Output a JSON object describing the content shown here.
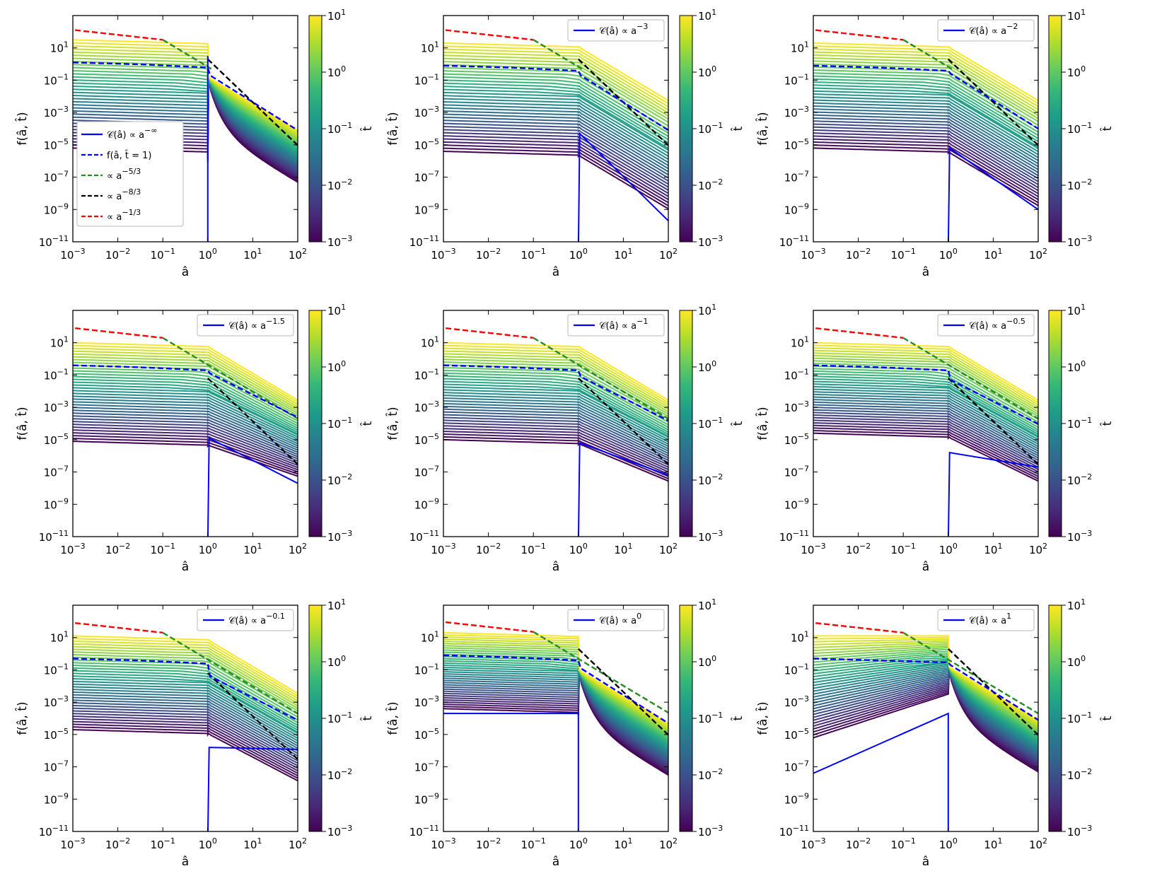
{
  "figure": {
    "x_axis_label": "â",
    "y_axis_label": "f(â, t̂)",
    "colorbar_label": "t̂",
    "x_tick_labels": [
      "10−3",
      "10−2",
      "10−1",
      "100",
      "101",
      "102"
    ],
    "y_tick_labels": [
      "10−11",
      "10−9",
      "10−7",
      "10−5",
      "10−3",
      "10−1",
      "101"
    ],
    "colorbar_tick_labels": [
      "10−3",
      "10−2",
      "10−1",
      "100",
      "101"
    ]
  },
  "colors": {
    "c_curve": "#0000ff",
    "f_t1": "#0000ff",
    "ref_5_3": "#228b22",
    "ref_8_3": "#000000",
    "ref_1_3": "#ff0000",
    "viridis": [
      "#440154",
      "#482878",
      "#3e4a89",
      "#31688e",
      "#26828e",
      "#1f9e89",
      "#35b779",
      "#6ece58",
      "#b5de2b",
      "#fde725"
    ]
  },
  "legend_common": {
    "f_t1": "f(â, t̂ = 1)",
    "ref_5_3": "∝ a−5/3",
    "ref_8_3": "∝ a−8/3",
    "ref_1_3": "∝ a−1/3"
  },
  "chart_data": [
    {
      "type": "line",
      "panel": 1,
      "c_exponent_label": "−∞",
      "legend": "𝒞(â) ∝ a−∞",
      "xlim": [
        0.001,
        100
      ],
      "ylim": [
        1e-11,
        1000
      ],
      "xscale": "log",
      "yscale": "log",
      "color_range": [
        0.001,
        10
      ],
      "show_full_legend": true
    },
    {
      "type": "line",
      "panel": 2,
      "c_exponent_label": "−3",
      "legend": "𝒞(â) ∝ a−3",
      "xlim": [
        0.001,
        100
      ],
      "ylim": [
        1e-11,
        1000
      ],
      "xscale": "log",
      "yscale": "log",
      "color_range": [
        0.001,
        10
      ],
      "show_full_legend": false
    },
    {
      "type": "line",
      "panel": 3,
      "c_exponent_label": "−2",
      "legend": "𝒞(â) ∝ a−2",
      "xlim": [
        0.001,
        100
      ],
      "ylim": [
        1e-11,
        1000
      ],
      "xscale": "log",
      "yscale": "log",
      "color_range": [
        0.001,
        10
      ],
      "show_full_legend": false
    },
    {
      "type": "line",
      "panel": 4,
      "c_exponent_label": "−1.5",
      "legend": "𝒞(â) ∝ a−1.5",
      "xlim": [
        0.001,
        100
      ],
      "ylim": [
        1e-11,
        1000
      ],
      "xscale": "log",
      "yscale": "log",
      "color_range": [
        0.001,
        10
      ],
      "show_full_legend": false
    },
    {
      "type": "line",
      "panel": 5,
      "c_exponent_label": "−1",
      "legend": "𝒞(â) ∝ a−1",
      "xlim": [
        0.001,
        100
      ],
      "ylim": [
        1e-11,
        1000
      ],
      "xscale": "log",
      "yscale": "log",
      "color_range": [
        0.001,
        10
      ],
      "show_full_legend": false
    },
    {
      "type": "line",
      "panel": 6,
      "c_exponent_label": "−0.5",
      "legend": "𝒞(â) ∝ a−0.5",
      "xlim": [
        0.001,
        100
      ],
      "ylim": [
        1e-11,
        1000
      ],
      "xscale": "log",
      "yscale": "log",
      "color_range": [
        0.001,
        10
      ],
      "show_full_legend": false
    },
    {
      "type": "line",
      "panel": 7,
      "c_exponent_label": "−0.1",
      "legend": "𝒞(â) ∝ a−0.1",
      "xlim": [
        0.001,
        100
      ],
      "ylim": [
        1e-11,
        1000
      ],
      "xscale": "log",
      "yscale": "log",
      "color_range": [
        0.001,
        10
      ],
      "show_full_legend": false
    },
    {
      "type": "line",
      "panel": 8,
      "c_exponent_label": "0",
      "legend": "𝒞(â) ∝ a0",
      "xlim": [
        0.001,
        100
      ],
      "ylim": [
        1e-11,
        1000
      ],
      "xscale": "log",
      "yscale": "log",
      "color_range": [
        0.001,
        10
      ],
      "show_full_legend": false
    },
    {
      "type": "line",
      "panel": 9,
      "c_exponent_label": "1",
      "legend": "𝒞(â) ∝ a1",
      "xlim": [
        0.001,
        100
      ],
      "ylim": [
        1e-11,
        1000
      ],
      "xscale": "log",
      "yscale": "log",
      "color_range": [
        0.001,
        10
      ],
      "show_full_legend": false
    }
  ]
}
